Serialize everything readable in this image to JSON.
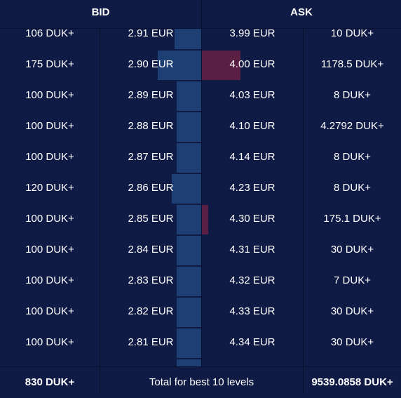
{
  "header": {
    "bid_label": "BID",
    "ask_label": "ASK"
  },
  "rows": [
    {
      "bid_qty": "106 DUK+",
      "bid_price": "2.91 EUR",
      "ask_price": "3.99 EUR",
      "ask_qty": "10 DUK+",
      "bid_depth": 0.26,
      "ask_depth": 0.0
    },
    {
      "bid_qty": "175 DUK+",
      "bid_price": "2.90 EUR",
      "ask_price": "4.00 EUR",
      "ask_qty": "1178.5 DUK+",
      "bid_depth": 0.43,
      "ask_depth": 0.38
    },
    {
      "bid_qty": "100 DUK+",
      "bid_price": "2.89 EUR",
      "ask_price": "4.03 EUR",
      "ask_qty": "8 DUK+",
      "bid_depth": 0.24,
      "ask_depth": 0.0
    },
    {
      "bid_qty": "100 DUK+",
      "bid_price": "2.88 EUR",
      "ask_price": "4.10 EUR",
      "ask_qty": "4.2792 DUK+",
      "bid_depth": 0.24,
      "ask_depth": 0.0
    },
    {
      "bid_qty": "100 DUK+",
      "bid_price": "2.87 EUR",
      "ask_price": "4.14 EUR",
      "ask_qty": "8 DUK+",
      "bid_depth": 0.24,
      "ask_depth": 0.0
    },
    {
      "bid_qty": "120 DUK+",
      "bid_price": "2.86 EUR",
      "ask_price": "4.23 EUR",
      "ask_qty": "8 DUK+",
      "bid_depth": 0.29,
      "ask_depth": 0.0
    },
    {
      "bid_qty": "100 DUK+",
      "bid_price": "2.85 EUR",
      "ask_price": "4.30 EUR",
      "ask_qty": "175.1 DUK+",
      "bid_depth": 0.24,
      "ask_depth": 0.06
    },
    {
      "bid_qty": "100 DUK+",
      "bid_price": "2.84 EUR",
      "ask_price": "4.31 EUR",
      "ask_qty": "30 DUK+",
      "bid_depth": 0.24,
      "ask_depth": 0.0
    },
    {
      "bid_qty": "100 DUK+",
      "bid_price": "2.83 EUR",
      "ask_price": "4.32 EUR",
      "ask_qty": "7 DUK+",
      "bid_depth": 0.24,
      "ask_depth": 0.0
    },
    {
      "bid_qty": "100 DUK+",
      "bid_price": "2.82 EUR",
      "ask_price": "4.33 EUR",
      "ask_qty": "30 DUK+",
      "bid_depth": 0.24,
      "ask_depth": 0.0
    },
    {
      "bid_qty": "100 DUK+",
      "bid_price": "2.81 EUR",
      "ask_price": "4.34 EUR",
      "ask_qty": "30 DUK+",
      "bid_depth": 0.24,
      "ask_depth": 0.0
    },
    {
      "bid_qty": "",
      "bid_price": "",
      "ask_price": "",
      "ask_qty": "",
      "bid_depth": 0.24,
      "ask_depth": 0.0
    }
  ],
  "footer": {
    "bid_total": "830 DUK+",
    "label": "Total for best 10 levels",
    "ask_total": "9539.0858 DUK+"
  },
  "colors": {
    "background": "#0f1a45",
    "bid_bar": "#1d3f74",
    "ask_bar": "#5b1f43",
    "divider": "#08102e"
  }
}
